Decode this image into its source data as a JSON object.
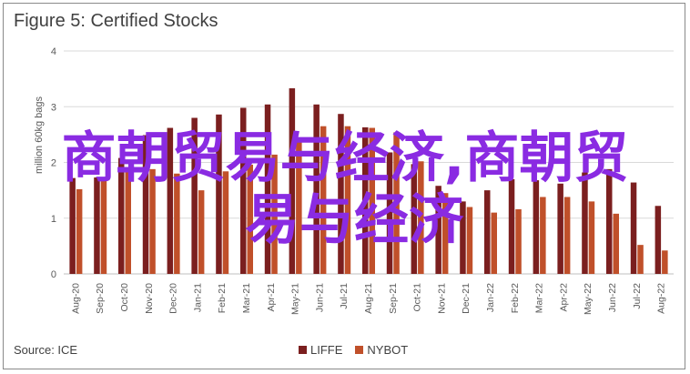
{
  "title": "Figure 5: Certified Stocks",
  "source": "Source: ICE",
  "watermark_line1": "商朝贸易与经济,商朝贸",
  "watermark_line2": "易与经济",
  "colors": {
    "liffe": "#7b1f1f",
    "nybot": "#c0502a",
    "grid": "#d9d9d9",
    "watermark": "#8a2be2",
    "axis_text": "#595959"
  },
  "chart_data": {
    "type": "bar",
    "title": "Figure 5: Certified Stocks",
    "ylabel": "million 60kg bags",
    "xlabel": "",
    "ylim": [
      0,
      4
    ],
    "yticks": [
      0,
      1,
      2,
      3,
      4
    ],
    "grid": true,
    "legend_position": "bottom",
    "categories": [
      "Aug-20",
      "Sep-20",
      "Oct-20",
      "Nov-20",
      "Dec-20",
      "Jan-21",
      "Feb-21",
      "Mar-21",
      "Apr-21",
      "May-21",
      "Jun-21",
      "Jul-21",
      "Aug-21",
      "Sep-21",
      "Oct-21",
      "Nov-21",
      "Dec-21",
      "Jan-22",
      "Feb-22",
      "Mar-22",
      "Apr-22",
      "May-22",
      "Jun-22",
      "Jul-22",
      "Aug-22"
    ],
    "series": [
      {
        "name": "LIFFE",
        "values": [
          1.72,
          1.73,
          2.08,
          2.49,
          2.62,
          2.8,
          2.86,
          2.98,
          3.04,
          3.33,
          3.04,
          2.87,
          2.63,
          2.18,
          1.97,
          1.58,
          1.3,
          1.5,
          1.7,
          1.68,
          1.62,
          1.82,
          1.88,
          1.64,
          1.22
        ]
      },
      {
        "name": "NYBOT",
        "values": [
          1.52,
          1.7,
          1.9,
          1.88,
          1.8,
          1.5,
          1.84,
          1.96,
          2.14,
          2.42,
          2.65,
          2.65,
          2.62,
          2.54,
          2.02,
          1.45,
          1.2,
          1.1,
          1.16,
          1.38,
          1.38,
          1.3,
          1.08,
          0.52,
          0.42
        ]
      }
    ]
  }
}
